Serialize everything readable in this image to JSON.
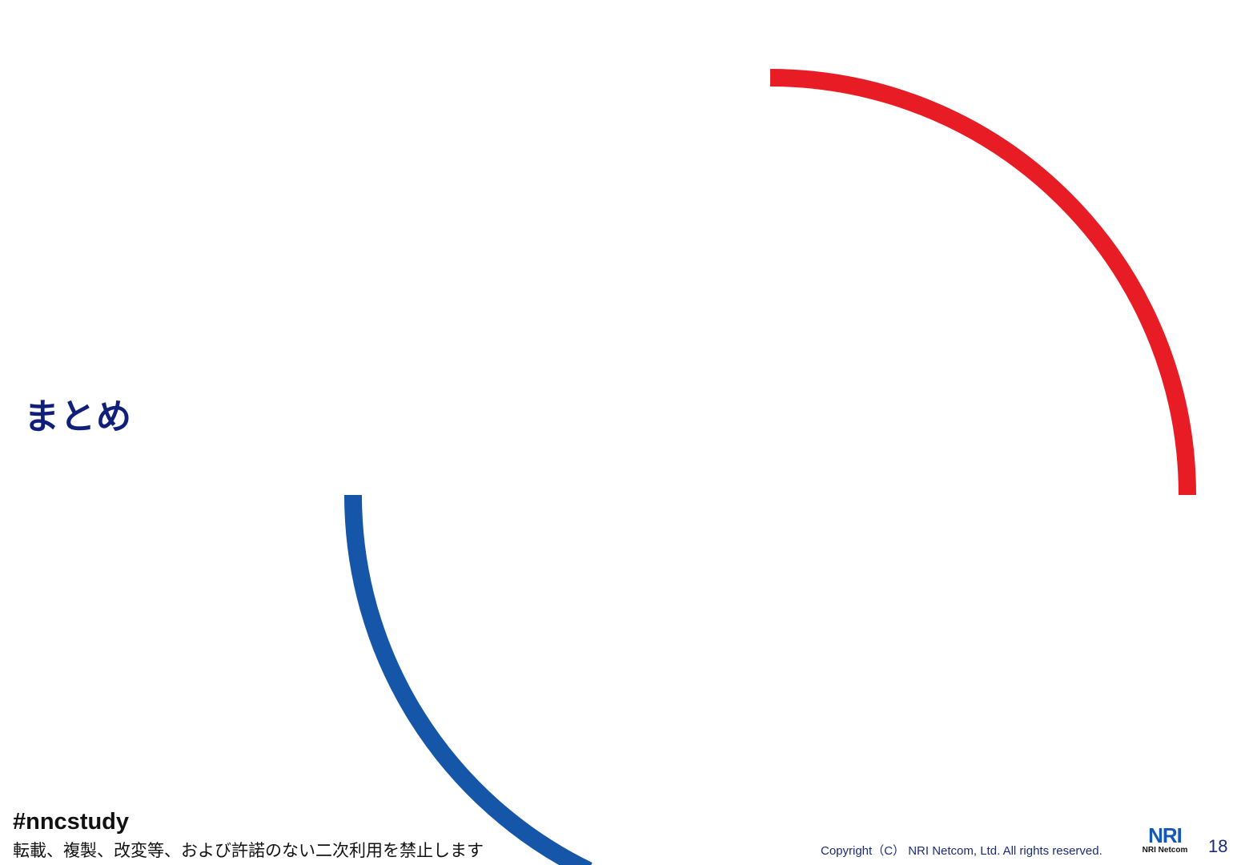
{
  "slide": {
    "title": "まとめ",
    "hashtag": "#nncstudy",
    "notice": "転載、複製、改変等、および許諾のない二次利用を禁止します",
    "copyright": "Copyright（C） NRI Netcom, Ltd. All rights reserved.",
    "logo_mark": "NRI",
    "logo_text": "NRI Netcom",
    "page_number": "18"
  },
  "colors": {
    "red_arc": "#e81c24",
    "blue_arc": "#1656a8",
    "title": "#0f1f7a"
  }
}
